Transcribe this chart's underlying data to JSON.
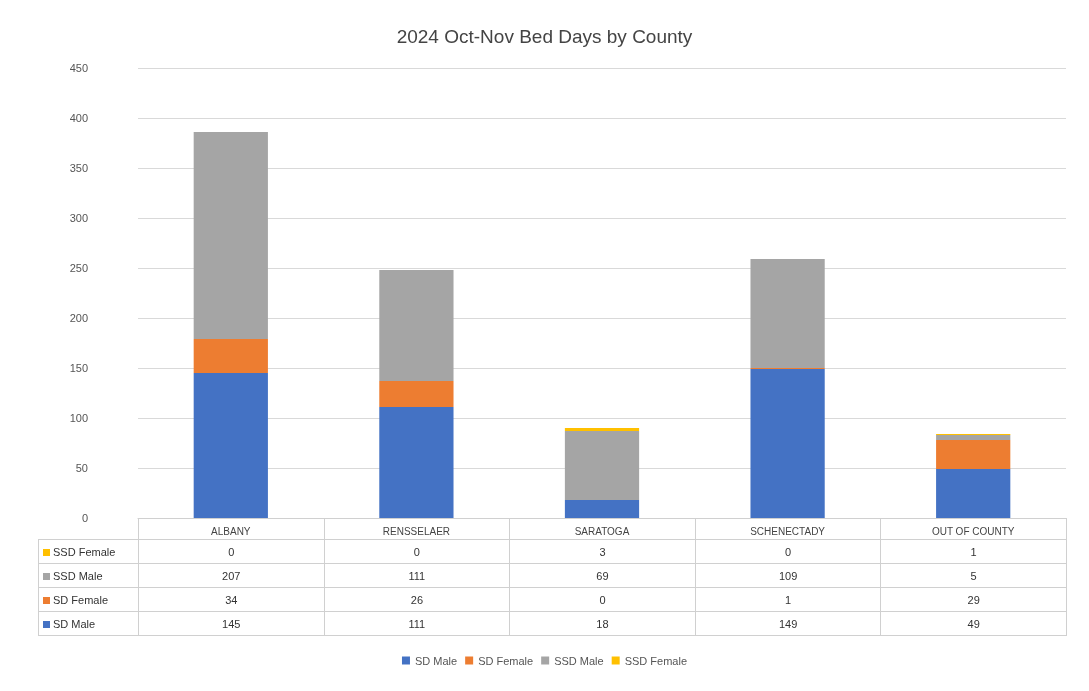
{
  "chart_data": {
    "type": "bar",
    "title": "2024 Oct-Nov Bed Days by County",
    "categories": [
      "ALBANY",
      "RENSSELAER",
      "SARATOGA",
      "SCHENECTADY",
      "OUT OF COUNTY"
    ],
    "series": [
      {
        "name": "SD Male",
        "color": "#4472c4",
        "values": [
          145,
          111,
          18,
          149,
          49
        ]
      },
      {
        "name": "SD Female",
        "color": "#ed7d31",
        "values": [
          34,
          26,
          0,
          1,
          29
        ]
      },
      {
        "name": "SSD Male",
        "color": "#a5a5a5",
        "values": [
          207,
          111,
          69,
          109,
          5
        ]
      },
      {
        "name": "SSD Female",
        "color": "#ffc000",
        "values": [
          0,
          0,
          3,
          0,
          1
        ]
      }
    ],
    "stacked": true,
    "ylim": [
      0,
      450
    ],
    "yticks": [
      0,
      50,
      100,
      150,
      200,
      250,
      300,
      350,
      400,
      450
    ],
    "grid": "y",
    "legend": "bottom",
    "data_labels": true
  }
}
